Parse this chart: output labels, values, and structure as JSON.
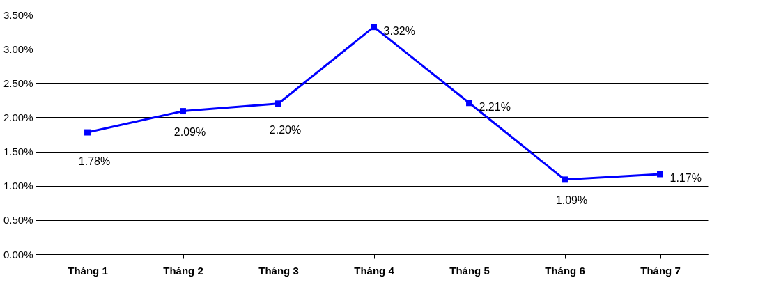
{
  "chart_data": {
    "type": "line",
    "categories": [
      "Tháng 1",
      "Tháng 2",
      "Tháng 3",
      "Tháng 4",
      "Tháng  5",
      "Tháng 6",
      "Tháng 7"
    ],
    "series": [
      {
        "color": "#0000ff",
        "values": [
          1.78,
          2.09,
          2.2,
          3.32,
          2.21,
          1.09,
          1.17
        ],
        "value_labels": [
          "1.78%",
          "2.09%",
          "2.20%",
          "3.32%",
          "2.21%",
          "1.09%",
          "1.17%"
        ]
      }
    ],
    "ylim": [
      0,
      3.5
    ],
    "yticks": [
      {
        "value": 0,
        "label": "0.00%"
      },
      {
        "value": 0.5,
        "label": "0.50%"
      },
      {
        "value": 1,
        "label": "1.00%"
      },
      {
        "value": 1.5,
        "label": "1.50%"
      },
      {
        "value": 2,
        "label": "2.00%"
      },
      {
        "value": 2.5,
        "label": "2.50%"
      },
      {
        "value": 3,
        "label": "3.00%"
      },
      {
        "value": 3.5,
        "label": "3.50%"
      }
    ],
    "grid": "y",
    "marker": "square",
    "line_style": "solid"
  }
}
